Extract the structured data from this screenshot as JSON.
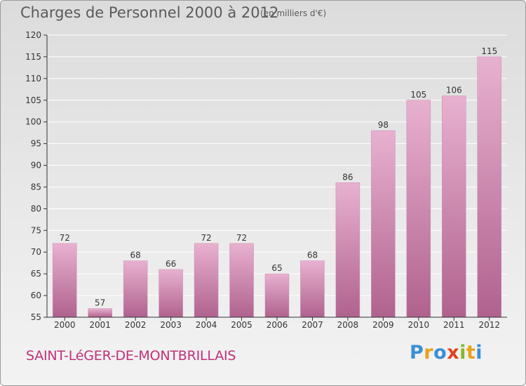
{
  "header": {
    "title": "Charges de Personnel 2000 à 2012",
    "unit": "(en milliers d'€)"
  },
  "footer": {
    "town": "SAINT-LéGER-DE-MONTBRILLAIS",
    "logo_letters": [
      "P",
      "r",
      "o",
      "x",
      "i",
      "t",
      "i"
    ],
    "logo_colors": [
      "#3a8fd6",
      "#e8a21c",
      "#3a8fd6",
      "#e0421f",
      "#84b82d",
      "#e8a21c",
      "#3a8fd6"
    ]
  },
  "colors": {
    "bar_light": "#e8b1d0",
    "bar_dark": "#b0628e",
    "axis": "#333333",
    "grid": "#ffffff"
  },
  "chart_data": {
    "type": "bar",
    "categories": [
      "2000",
      "2001",
      "2002",
      "2003",
      "2004",
      "2005",
      "2006",
      "2007",
      "2008",
      "2009",
      "2010",
      "2011",
      "2012"
    ],
    "values": [
      72,
      57,
      68,
      66,
      72,
      72,
      65,
      68,
      86,
      98,
      105,
      106,
      115
    ],
    "ylim": [
      55,
      120
    ],
    "yticks": [
      55,
      60,
      65,
      70,
      75,
      80,
      85,
      90,
      95,
      100,
      105,
      110,
      115,
      120
    ],
    "grid": true,
    "data_labels": true
  }
}
